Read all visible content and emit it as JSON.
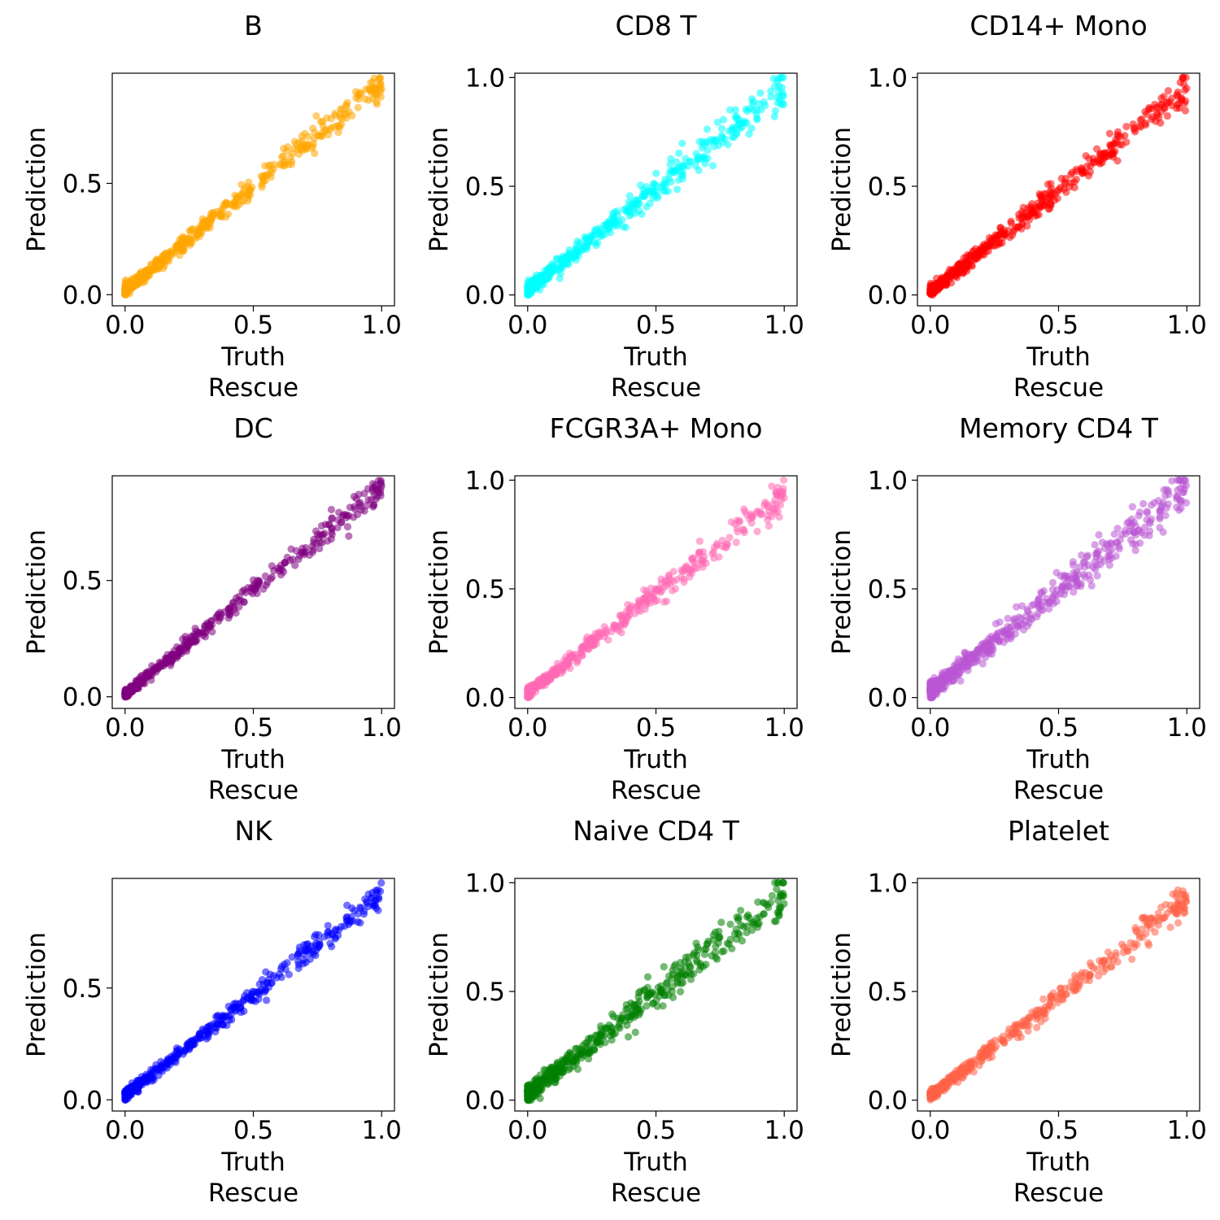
{
  "figure": {
    "xlabel": "Truth",
    "ylabel": "Prediction",
    "sublabel": "Rescue"
  },
  "chart_data": [
    {
      "type": "scatter",
      "title": "B",
      "color": "#ffa500",
      "xlim": [
        -0.05,
        1.05
      ],
      "ylim": [
        -0.05,
        0.995
      ],
      "xticks": [
        {
          "value": 0.0,
          "label": "0.0"
        },
        {
          "value": 0.5,
          "label": "0.5"
        },
        {
          "value": 1.0,
          "label": "1.0"
        }
      ],
      "yticks": [
        {
          "value": 0.0,
          "label": "0.0"
        },
        {
          "value": 0.5,
          "label": "0.5"
        }
      ],
      "slope": 0.93,
      "intercept": 0.02,
      "spread": 0.03,
      "n": 520,
      "seed": 11
    },
    {
      "type": "scatter",
      "title": "CD8 T",
      "color": "#00ffff",
      "xlim": [
        -0.05,
        1.05
      ],
      "ylim": [
        -0.05,
        1.02
      ],
      "xticks": [
        {
          "value": 0.0,
          "label": "0.0"
        },
        {
          "value": 0.5,
          "label": "0.5"
        },
        {
          "value": 1.0,
          "label": "1.0"
        }
      ],
      "yticks": [
        {
          "value": 0.0,
          "label": "0.0"
        },
        {
          "value": 0.5,
          "label": "0.5"
        },
        {
          "value": 1.0,
          "label": "1.0"
        }
      ],
      "slope": 0.93,
      "intercept": 0.025,
      "spread": 0.035,
      "n": 470,
      "seed": 23
    },
    {
      "type": "scatter",
      "title": "CD14+ Mono",
      "color": "#ff0000",
      "xlim": [
        -0.05,
        1.05
      ],
      "ylim": [
        -0.05,
        1.02
      ],
      "xticks": [
        {
          "value": 0.0,
          "label": "0.0"
        },
        {
          "value": 0.5,
          "label": "0.5"
        },
        {
          "value": 1.0,
          "label": "1.0"
        }
      ],
      "yticks": [
        {
          "value": 0.0,
          "label": "0.0"
        },
        {
          "value": 0.5,
          "label": "0.5"
        },
        {
          "value": 1.0,
          "label": "1.0"
        }
      ],
      "slope": 0.93,
      "intercept": 0.015,
      "spread": 0.03,
      "n": 480,
      "seed": 37
    },
    {
      "type": "scatter",
      "title": "DC",
      "color": "#800080",
      "xlim": [
        -0.05,
        1.05
      ],
      "ylim": [
        -0.05,
        0.95
      ],
      "xticks": [
        {
          "value": 0.0,
          "label": "0.0"
        },
        {
          "value": 0.5,
          "label": "0.5"
        },
        {
          "value": 1.0,
          "label": "1.0"
        }
      ],
      "yticks": [
        {
          "value": 0.0,
          "label": "0.0"
        },
        {
          "value": 0.5,
          "label": "0.5"
        }
      ],
      "slope": 0.89,
      "intercept": 0.01,
      "spread": 0.025,
      "n": 430,
      "seed": 41
    },
    {
      "type": "scatter",
      "title": "FCGR3A+ Mono",
      "color": "#ff69b4",
      "xlim": [
        -0.05,
        1.05
      ],
      "ylim": [
        -0.05,
        1.02
      ],
      "xticks": [
        {
          "value": 0.0,
          "label": "0.0"
        },
        {
          "value": 0.5,
          "label": "0.5"
        },
        {
          "value": 1.0,
          "label": "1.0"
        }
      ],
      "yticks": [
        {
          "value": 0.0,
          "label": "0.0"
        },
        {
          "value": 0.5,
          "label": "0.5"
        },
        {
          "value": 1.0,
          "label": "1.0"
        }
      ],
      "slope": 0.92,
      "intercept": 0.02,
      "spread": 0.03,
      "n": 450,
      "seed": 53
    },
    {
      "type": "scatter",
      "title": "Memory CD4 T",
      "color": "#ba55d3",
      "xlim": [
        -0.05,
        1.05
      ],
      "ylim": [
        -0.05,
        1.02
      ],
      "xticks": [
        {
          "value": 0.0,
          "label": "0.0"
        },
        {
          "value": 0.5,
          "label": "0.5"
        },
        {
          "value": 1.0,
          "label": "1.0"
        }
      ],
      "yticks": [
        {
          "value": 0.0,
          "label": "0.0"
        },
        {
          "value": 0.5,
          "label": "0.5"
        },
        {
          "value": 1.0,
          "label": "1.0"
        }
      ],
      "slope": 0.93,
      "intercept": 0.03,
      "spread": 0.04,
      "n": 520,
      "seed": 67
    },
    {
      "type": "scatter",
      "title": "NK",
      "color": "#0000ff",
      "xlim": [
        -0.05,
        1.05
      ],
      "ylim": [
        -0.05,
        0.99
      ],
      "xticks": [
        {
          "value": 0.0,
          "label": "0.0"
        },
        {
          "value": 0.5,
          "label": "0.5"
        },
        {
          "value": 1.0,
          "label": "1.0"
        }
      ],
      "yticks": [
        {
          "value": 0.0,
          "label": "0.0"
        },
        {
          "value": 0.5,
          "label": "0.5"
        }
      ],
      "slope": 0.9,
      "intercept": 0.02,
      "spread": 0.025,
      "n": 440,
      "seed": 71
    },
    {
      "type": "scatter",
      "title": "Naive CD4 T",
      "color": "#008000",
      "xlim": [
        -0.05,
        1.05
      ],
      "ylim": [
        -0.05,
        1.02
      ],
      "xticks": [
        {
          "value": 0.0,
          "label": "0.0"
        },
        {
          "value": 0.5,
          "label": "0.5"
        },
        {
          "value": 1.0,
          "label": "1.0"
        }
      ],
      "yticks": [
        {
          "value": 0.0,
          "label": "0.0"
        },
        {
          "value": 0.5,
          "label": "0.5"
        },
        {
          "value": 1.0,
          "label": "1.0"
        }
      ],
      "slope": 0.92,
      "intercept": 0.03,
      "spread": 0.045,
      "n": 520,
      "seed": 83
    },
    {
      "type": "scatter",
      "title": "Platelet",
      "color": "#ff6347",
      "xlim": [
        -0.05,
        1.05
      ],
      "ylim": [
        -0.05,
        1.02
      ],
      "xticks": [
        {
          "value": 0.0,
          "label": "0.0"
        },
        {
          "value": 0.5,
          "label": "0.5"
        },
        {
          "value": 1.0,
          "label": "1.0"
        }
      ],
      "yticks": [
        {
          "value": 0.0,
          "label": "0.0"
        },
        {
          "value": 0.5,
          "label": "0.5"
        },
        {
          "value": 1.0,
          "label": "1.0"
        }
      ],
      "slope": 0.9,
      "intercept": 0.02,
      "spread": 0.03,
      "n": 450,
      "seed": 97
    }
  ]
}
